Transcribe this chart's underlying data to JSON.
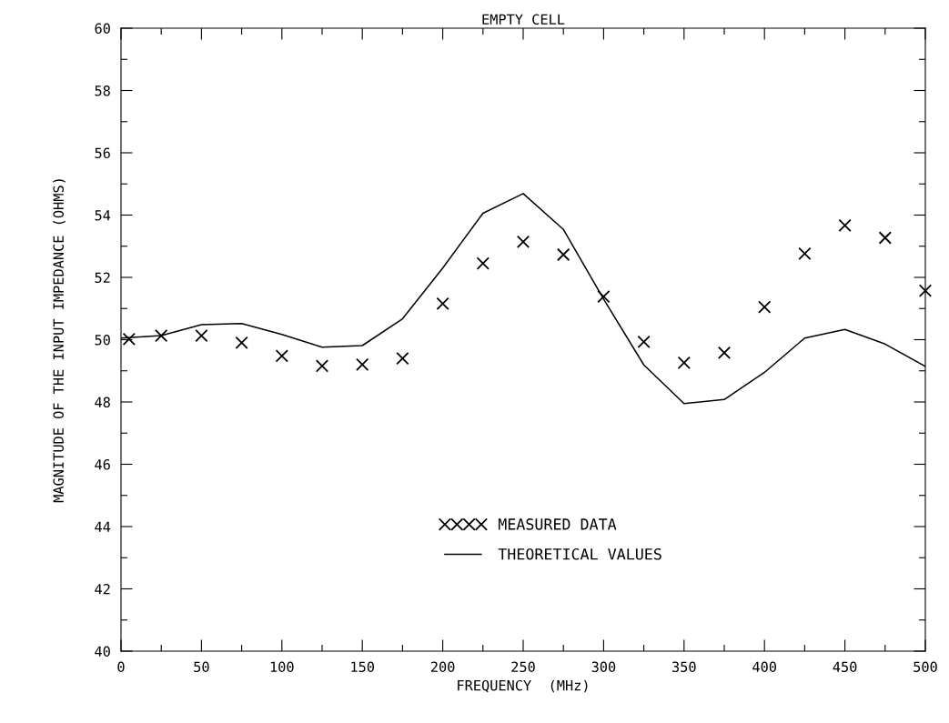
{
  "chart_data": {
    "type": "line",
    "title": "EMPTY CELL",
    "xlabel": "FREQUENCY  (MHz)",
    "ylabel": "MAGNITUDE OF THE INPUT IMPEDANCE (OHMS)",
    "series": [
      {
        "name": "MEASURED DATA",
        "type": "scatter",
        "marker": "cross",
        "color": "#000000",
        "x": [
          5,
          25,
          50,
          75,
          100,
          125,
          150,
          175,
          200,
          225,
          250,
          275,
          300,
          325,
          350,
          375,
          400,
          425,
          450,
          475,
          500
        ],
        "values": [
          50.02,
          50.13,
          50.13,
          49.9,
          49.48,
          49.16,
          49.2,
          49.4,
          51.16,
          52.45,
          53.14,
          52.73,
          51.38,
          49.93,
          49.26,
          49.58,
          51.05,
          52.76,
          53.67,
          53.27,
          51.57
        ]
      },
      {
        "name": "THEORETICAL VALUES",
        "line_style": "solid",
        "color": "#000000",
        "x": [
          0,
          25,
          50,
          75,
          100,
          125,
          150,
          175,
          200,
          225,
          250,
          275,
          300,
          325,
          350,
          375,
          400,
          425,
          450,
          475,
          500
        ],
        "values": [
          50.05,
          50.13,
          50.48,
          50.52,
          50.17,
          49.76,
          49.81,
          50.67,
          52.3,
          54.06,
          54.69,
          53.54,
          51.3,
          49.19,
          47.95,
          48.08,
          48.95,
          50.05,
          50.33,
          49.86,
          49.14
        ]
      }
    ],
    "xlim": [
      0,
      500
    ],
    "ylim": [
      40,
      60
    ],
    "xticks": [
      0,
      {
        "value": 25,
        "label": null
      },
      50,
      {
        "value": 75,
        "label": null
      },
      100,
      {
        "value": 125,
        "label": null
      },
      150,
      {
        "value": 175,
        "label": null
      },
      200,
      {
        "value": 225,
        "label": null
      },
      250,
      {
        "value": 275,
        "label": null
      },
      300,
      {
        "value": 325,
        "label": null
      },
      350,
      {
        "value": 375,
        "label": null
      },
      400,
      {
        "value": 425,
        "label": null
      },
      450,
      {
        "value": 475,
        "label": null
      },
      500
    ],
    "yticks": [
      40,
      {
        "value": 41,
        "label": null
      },
      42,
      {
        "value": 43,
        "label": null
      },
      44,
      {
        "value": 45,
        "label": null
      },
      46,
      {
        "value": 47,
        "label": null
      },
      48,
      {
        "value": 49,
        "label": null
      },
      50,
      {
        "value": 51,
        "label": null
      },
      52,
      {
        "value": 53,
        "label": null
      },
      54,
      {
        "value": 55,
        "label": null
      },
      56,
      {
        "value": 57,
        "label": null
      },
      58,
      {
        "value": 59,
        "label": null
      },
      60
    ],
    "grid": false,
    "legend": "bottom"
  }
}
